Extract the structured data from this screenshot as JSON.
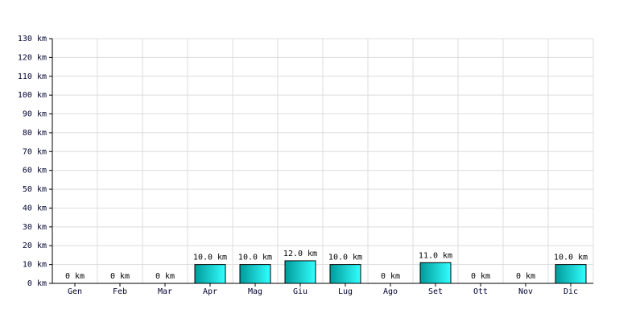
{
  "chart_data": {
    "type": "bar",
    "categories": [
      "Gen",
      "Feb",
      "Mar",
      "Apr",
      "Mag",
      "Giu",
      "Lug",
      "Ago",
      "Set",
      "Ott",
      "Nov",
      "Dic"
    ],
    "values": [
      0,
      0,
      0,
      10,
      10,
      12,
      10,
      0,
      11,
      0,
      0,
      10
    ],
    "value_labels": [
      "0 km",
      "0 km",
      "0 km",
      "10.0 km",
      "10.0 km",
      "12.0 km",
      "10.0 km",
      "0 km",
      "11.0 km",
      "0 km",
      "0 km",
      "10.0 km"
    ],
    "color": "#00c8c8",
    "ylim": [
      0,
      130
    ],
    "yticks": [
      {
        "value": 0,
        "label": "0 km"
      },
      {
        "value": 10,
        "label": "10 km"
      },
      {
        "value": 20,
        "label": "20 km"
      },
      {
        "value": 30,
        "label": "30 km"
      },
      {
        "value": 40,
        "label": "40 km"
      },
      {
        "value": 50,
        "label": "50 km"
      },
      {
        "value": 60,
        "label": "60 km"
      },
      {
        "value": 70,
        "label": "70 km"
      },
      {
        "value": 80,
        "label": "80 km"
      },
      {
        "value": 90,
        "label": "90 km"
      },
      {
        "value": 100,
        "label": "100 km"
      },
      {
        "value": 110,
        "label": "110 km"
      },
      {
        "value": 120,
        "label": "120 km"
      },
      {
        "value": 130,
        "label": "130 km"
      }
    ],
    "grid": true
  }
}
